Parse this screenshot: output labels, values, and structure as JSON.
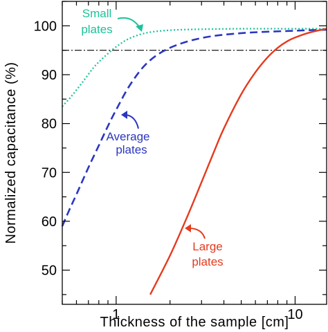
{
  "chart_data": {
    "type": "line",
    "title": "",
    "xlabel": "Thickness of the sample [cm]",
    "ylabel": "Normalized capacitance (%)",
    "xscale": "log",
    "xlim": [
      0.5,
      15
    ],
    "ylim": [
      43,
      105
    ],
    "xticks": [
      {
        "value": 1,
        "label": "1"
      },
      {
        "value": 10,
        "label": "10"
      }
    ],
    "yticks": [
      50,
      60,
      70,
      80,
      90,
      100
    ],
    "grid": false,
    "reference_line": {
      "y": 95,
      "style": "dash-dot",
      "color": "#000000"
    },
    "series": [
      {
        "id": "small",
        "style": "dotted",
        "color": "#1cc29a",
        "x": [
          0.5,
          0.56,
          0.65,
          0.75,
          0.85,
          1.0,
          1.2,
          1.5,
          2.0,
          3.0,
          5.0,
          10.0,
          15.0
        ],
        "y": [
          83.5,
          85.5,
          88.5,
          91.5,
          93.5,
          95.7,
          97.5,
          98.6,
          99.1,
          99.3,
          99.4,
          99.4,
          99.4
        ]
      },
      {
        "id": "average",
        "style": "dashed",
        "color": "#2a36c0",
        "x": [
          0.5,
          0.55,
          0.6,
          0.7,
          0.8,
          0.9,
          1.0,
          1.2,
          1.5,
          2.0,
          3.0,
          5.0,
          10.0,
          15.0
        ],
        "y": [
          59.0,
          62.5,
          65.5,
          71.0,
          75.5,
          79.5,
          82.8,
          88.0,
          92.5,
          95.5,
          97.5,
          98.5,
          99.0,
          99.2
        ]
      },
      {
        "id": "large",
        "style": "solid",
        "color": "#e53a1e",
        "x": [
          1.55,
          2.0,
          2.5,
          3.0,
          3.5,
          4.0,
          5.0,
          6.0,
          7.0,
          8.0,
          9.0,
          10.0,
          12.0,
          15.0
        ],
        "y": [
          45.0,
          53.0,
          61.0,
          68.0,
          74.0,
          79.0,
          86.0,
          90.5,
          93.5,
          95.5,
          96.8,
          97.6,
          98.6,
          99.4
        ]
      }
    ],
    "annotations": [
      {
        "series": "small",
        "lines": [
          "Small",
          "plates"
        ],
        "color": "#1cc29a"
      },
      {
        "series": "average",
        "lines": [
          "Average",
          "plates"
        ],
        "color": "#2a36c0"
      },
      {
        "series": "large",
        "lines": [
          "Large",
          "plates"
        ],
        "color": "#e53a1e"
      }
    ]
  }
}
